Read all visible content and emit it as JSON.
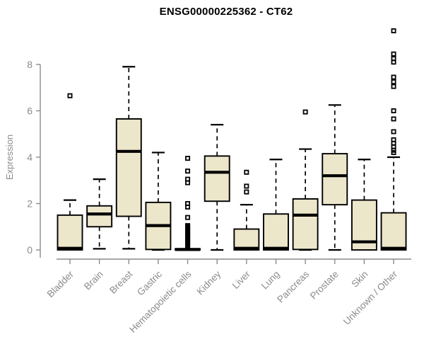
{
  "page": {
    "background": "#ffffff"
  },
  "chart_data": {
    "type": "boxplot",
    "title": "ENSG00000225362 - CT62",
    "ylabel": "Expression",
    "xlabel": "",
    "yticks": [
      0,
      2,
      4,
      6,
      8
    ],
    "ylim": [
      0,
      9.6
    ],
    "grid": false,
    "legend": "none",
    "colors": {
      "box_fill": "#ece6cb",
      "box_border": "#000000",
      "median": "#000000",
      "whisker": "#000000",
      "outlier": "#000000",
      "axis": "#8b8b8b",
      "tick_label": "#8b8b8b",
      "title": "#000000"
    },
    "categories": [
      "Bladder",
      "Brain",
      "Breast",
      "Gastric",
      "Hematopoietic cells",
      "Kidney",
      "Liver",
      "Lung",
      "Pancreas",
      "Prostate",
      "Skin",
      "Unknown / Other"
    ],
    "series": [
      {
        "label": "Bladder",
        "whisker_low": 0,
        "q1": 0,
        "median": 0.07,
        "q3": 1.5,
        "whisker_high": 2.15,
        "outliers": [
          6.65
        ]
      },
      {
        "label": "Brain",
        "whisker_low": 0.05,
        "q1": 1.0,
        "median": 1.55,
        "q3": 1.9,
        "whisker_high": 3.05,
        "outliers": []
      },
      {
        "label": "Breast",
        "whisker_low": 0.05,
        "q1": 1.45,
        "median": 4.25,
        "q3": 5.65,
        "whisker_high": 7.9,
        "outliers": []
      },
      {
        "label": "Gastric",
        "whisker_low": 0,
        "q1": 0.02,
        "median": 1.05,
        "q3": 2.05,
        "whisker_high": 4.2,
        "outliers": []
      },
      {
        "label": "Hematopoietic cells",
        "whisker_low": 0,
        "q1": 0,
        "median": 0.02,
        "q3": 0.05,
        "whisker_high": 0.05,
        "outliers": [
          3.95,
          3.4,
          3.05,
          2.9,
          2.0,
          1.85,
          1.4,
          1.05,
          1.0,
          0.95,
          0.9,
          0.85,
          0.8,
          0.75,
          0.7,
          0.65,
          0.6,
          0.55,
          0.5,
          0.45,
          0.4,
          0.35,
          0.3,
          0.25,
          0.2,
          0.15
        ]
      },
      {
        "label": "Kidney",
        "whisker_low": 0,
        "q1": 2.1,
        "median": 3.35,
        "q3": 4.05,
        "whisker_high": 5.4,
        "outliers": []
      },
      {
        "label": "Liver",
        "whisker_low": 0,
        "q1": 0,
        "median": 0.07,
        "q3": 0.9,
        "whisker_high": 1.95,
        "outliers": [
          2.5,
          2.75,
          3.35
        ]
      },
      {
        "label": "Lung",
        "whisker_low": 0,
        "q1": 0,
        "median": 0.07,
        "q3": 1.55,
        "whisker_high": 3.9,
        "outliers": []
      },
      {
        "label": "Pancreas",
        "whisker_low": 0,
        "q1": 0.02,
        "median": 1.5,
        "q3": 2.2,
        "whisker_high": 4.35,
        "outliers": [
          5.95
        ]
      },
      {
        "label": "Prostate",
        "whisker_low": 0,
        "q1": 1.95,
        "median": 3.2,
        "q3": 4.15,
        "whisker_high": 6.25,
        "outliers": []
      },
      {
        "label": "Skin",
        "whisker_low": 0,
        "q1": 0,
        "median": 0.35,
        "q3": 2.15,
        "whisker_high": 3.9,
        "outliers": []
      },
      {
        "label": "Unknown / Other",
        "whisker_low": 0,
        "q1": 0,
        "median": 0.07,
        "q3": 1.6,
        "whisker_high": 4.0,
        "outliers": [
          4.2,
          4.3,
          4.45,
          4.6,
          4.75,
          5.1,
          5.65,
          6.0,
          7.05,
          7.25,
          7.45,
          8.1,
          8.25,
          8.45,
          9.45
        ]
      }
    ]
  }
}
